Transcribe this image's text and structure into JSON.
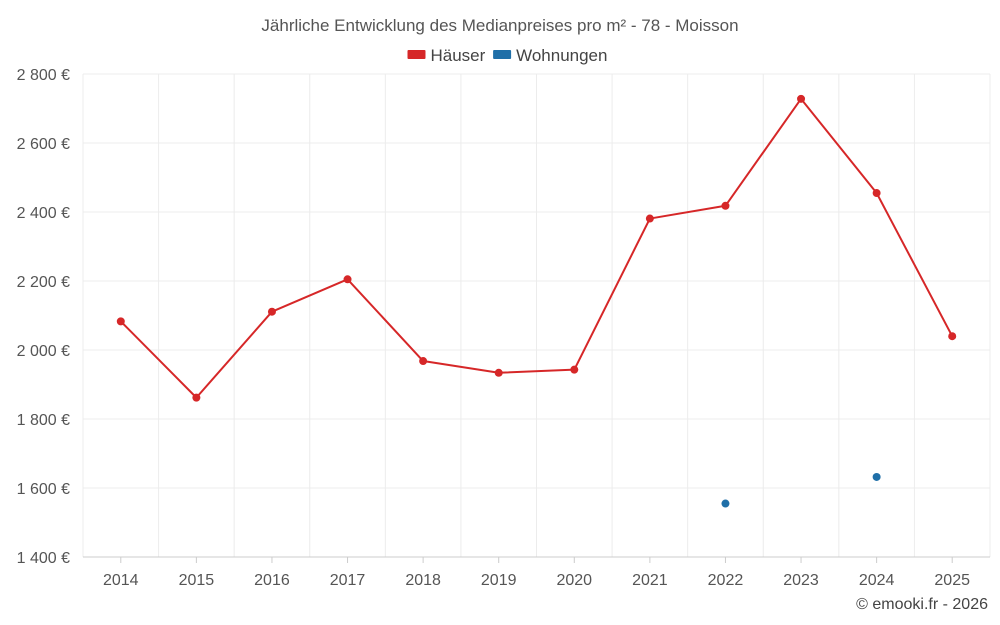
{
  "chart_data": {
    "type": "line",
    "title": "Jährliche Entwicklung des Medianpreises pro m² - 78 - Moisson",
    "categories": [
      "2014",
      "2015",
      "2016",
      "2017",
      "2018",
      "2019",
      "2020",
      "2021",
      "2022",
      "2023",
      "2024",
      "2025"
    ],
    "series": [
      {
        "name": "Häuser",
        "color": "#d62728",
        "values": [
          2083,
          1862,
          2111,
          2205,
          1968,
          1934,
          1943,
          2381,
          2418,
          2728,
          2455,
          2040
        ]
      },
      {
        "name": "Wohnungen",
        "color": "#1f6fa8",
        "values": [
          null,
          null,
          null,
          null,
          null,
          null,
          null,
          null,
          1555,
          null,
          1632,
          null
        ]
      }
    ],
    "ylim": [
      1400,
      2800
    ],
    "yticks": [
      1400,
      1600,
      1800,
      2000,
      2200,
      2400,
      2600,
      2800
    ],
    "ytick_labels": [
      "1 400 €",
      "1 600 €",
      "1 800 €",
      "2 000 €",
      "2 200 €",
      "2 400 €",
      "2 600 €",
      "2 800 €"
    ],
    "xlabel": "",
    "ylabel": "",
    "grid": true,
    "legend_position": "top-center"
  },
  "credit": "© emooki.fr - 2026"
}
